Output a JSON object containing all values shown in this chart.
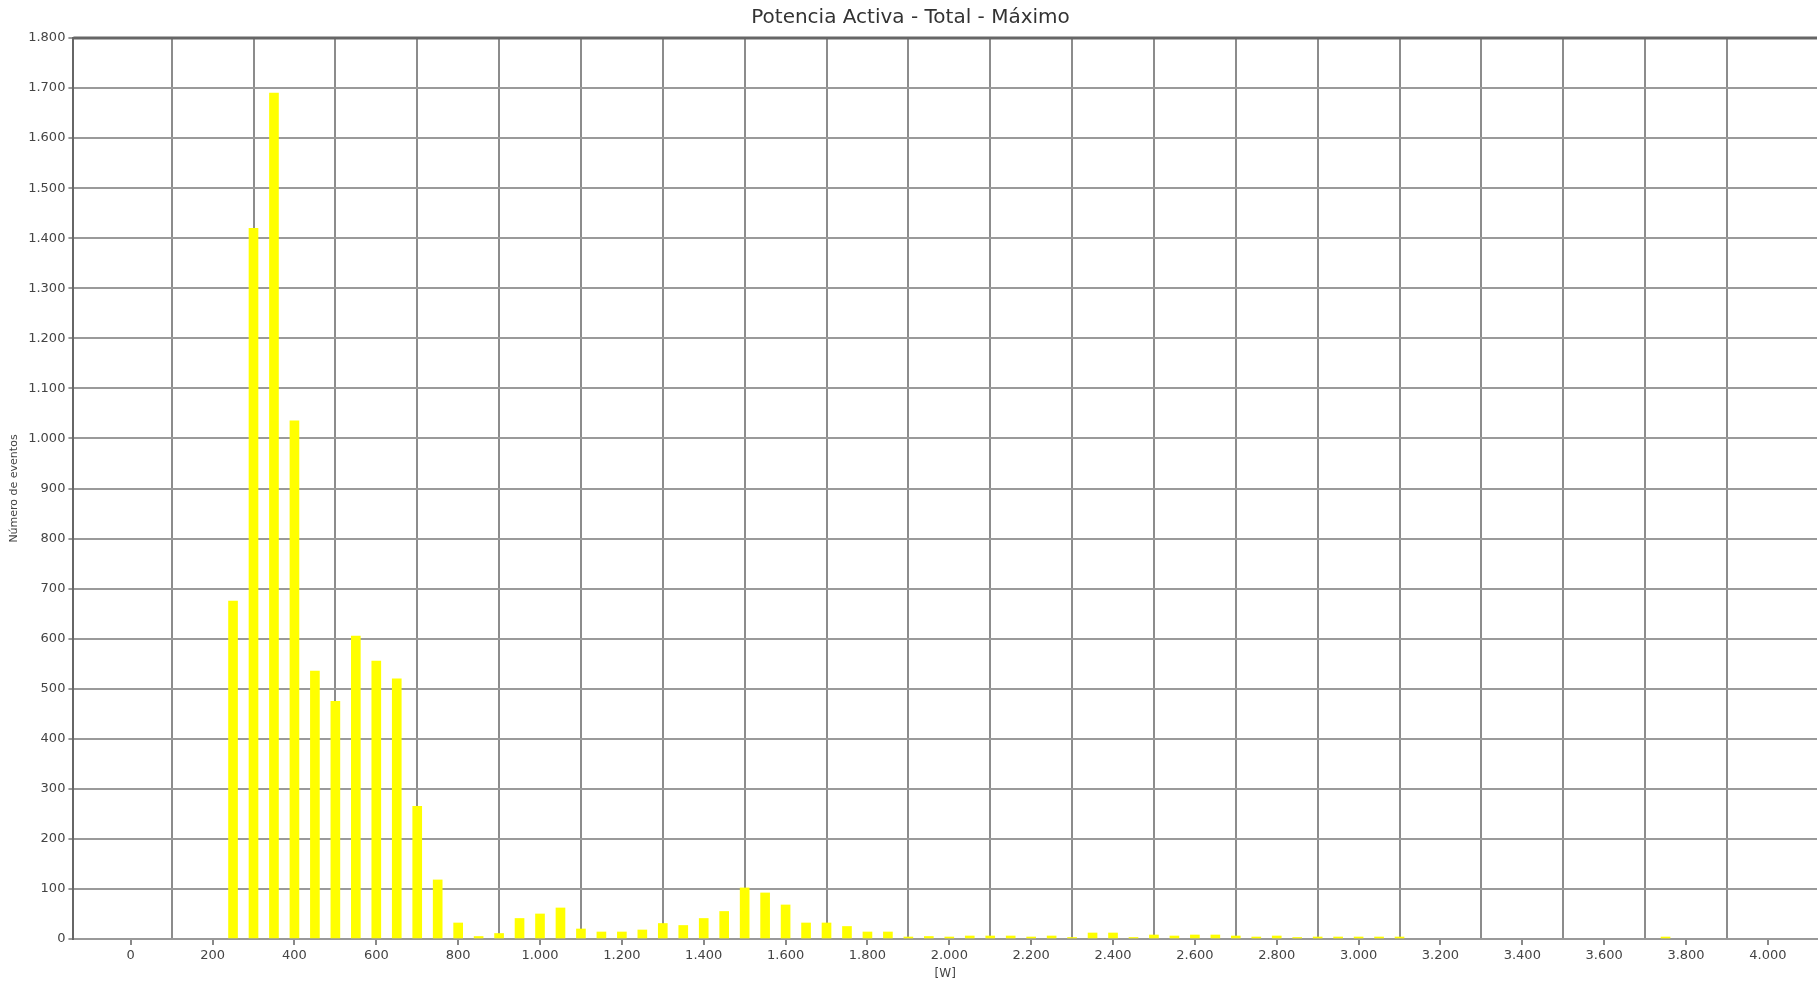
{
  "chart_data": {
    "type": "bar",
    "title": "Potencia Activa - Total - Máximo",
    "xlabel": "[W]",
    "ylabel": "Número de eventos",
    "x": [
      250,
      300,
      350,
      400,
      450,
      500,
      550,
      600,
      650,
      700,
      750,
      800,
      850,
      900,
      950,
      1000,
      1050,
      1100,
      1150,
      1200,
      1250,
      1300,
      1350,
      1400,
      1450,
      1500,
      1550,
      1600,
      1650,
      1700,
      1750,
      1800,
      1850,
      1900,
      1950,
      2000,
      2050,
      2100,
      2150,
      2200,
      2250,
      2300,
      2350,
      2400,
      2450,
      2500,
      2550,
      2600,
      2650,
      2700,
      2750,
      2800,
      2850,
      2900,
      2950,
      3000,
      3050,
      3100,
      3750
    ],
    "values": [
      675,
      1420,
      1690,
      1035,
      535,
      475,
      605,
      555,
      520,
      265,
      118,
      32,
      5,
      11,
      41,
      50,
      62,
      20,
      14,
      14,
      18,
      31,
      27,
      41,
      55,
      102,
      92,
      68,
      32,
      32,
      25,
      14,
      14,
      4,
      5,
      4,
      6,
      6,
      6,
      4,
      6,
      3,
      12,
      12,
      3,
      8,
      6,
      8,
      8,
      6,
      4,
      6,
      3,
      4,
      4,
      4,
      4,
      4,
      4
    ],
    "color": "#ffff00",
    "xlim": [
      -140,
      4120
    ],
    "xticks": [
      0,
      {
        "value": 100,
        "label": null
      },
      {
        "value": 200,
        "label": "200"
      },
      {
        "value": 300,
        "label": null
      },
      {
        "value": 400,
        "label": "400"
      },
      {
        "value": 500,
        "label": null
      },
      {
        "value": 600,
        "label": "600"
      },
      {
        "value": 700,
        "label": null
      },
      {
        "value": 800,
        "label": "800"
      },
      {
        "value": 900,
        "label": null
      },
      {
        "value": 1000,
        "label": "1.000"
      },
      {
        "value": 1100,
        "label": null
      },
      {
        "value": 1200,
        "label": "1.200"
      },
      {
        "value": 1300,
        "label": null
      },
      {
        "value": 1400,
        "label": "1.400"
      },
      {
        "value": 1500,
        "label": null
      },
      {
        "value": 1600,
        "label": "1.600"
      },
      {
        "value": 1700,
        "label": null
      },
      {
        "value": 1800,
        "label": "1.800"
      },
      {
        "value": 1900,
        "label": null
      },
      {
        "value": 2000,
        "label": "2.000"
      },
      {
        "value": 2100,
        "label": null
      },
      {
        "value": 2200,
        "label": "2.200"
      },
      {
        "value": 2300,
        "label": null
      },
      {
        "value": 2400,
        "label": "2.400"
      },
      {
        "value": 2500,
        "label": null
      },
      {
        "value": 2600,
        "label": "2.600"
      },
      {
        "value": 2700,
        "label": null
      },
      {
        "value": 2800,
        "label": "2.800"
      },
      {
        "value": 2900,
        "label": null
      },
      {
        "value": 3000,
        "label": "3.000"
      },
      {
        "value": 3100,
        "label": null
      },
      {
        "value": 3200,
        "label": "3.200"
      },
      {
        "value": 3300,
        "label": null
      },
      {
        "value": 3400,
        "label": "3.400"
      },
      {
        "value": 3500,
        "label": null
      },
      {
        "value": 3600,
        "label": "3.600"
      },
      {
        "value": 3700,
        "label": null
      },
      {
        "value": 3800,
        "label": "3.800"
      },
      {
        "value": 3900,
        "label": null
      },
      {
        "value": 4000,
        "label": "4.000"
      }
    ],
    "ylim": [
      0,
      1800
    ],
    "yticks": [
      0,
      100,
      200,
      300,
      400,
      500,
      600,
      700,
      800,
      900,
      {
        "value": 1000,
        "label": "1.000"
      },
      {
        "value": 1100,
        "label": "1.100"
      },
      {
        "value": 1200,
        "label": "1.200"
      },
      {
        "value": 1300,
        "label": "1.300"
      },
      {
        "value": 1400,
        "label": "1.400"
      },
      {
        "value": 1500,
        "label": "1.500"
      },
      {
        "value": 1600,
        "label": "1.600"
      },
      {
        "value": 1700,
        "label": "1.700"
      },
      {
        "value": 1800,
        "label": "1.800"
      }
    ],
    "grid": true,
    "legend": false
  }
}
